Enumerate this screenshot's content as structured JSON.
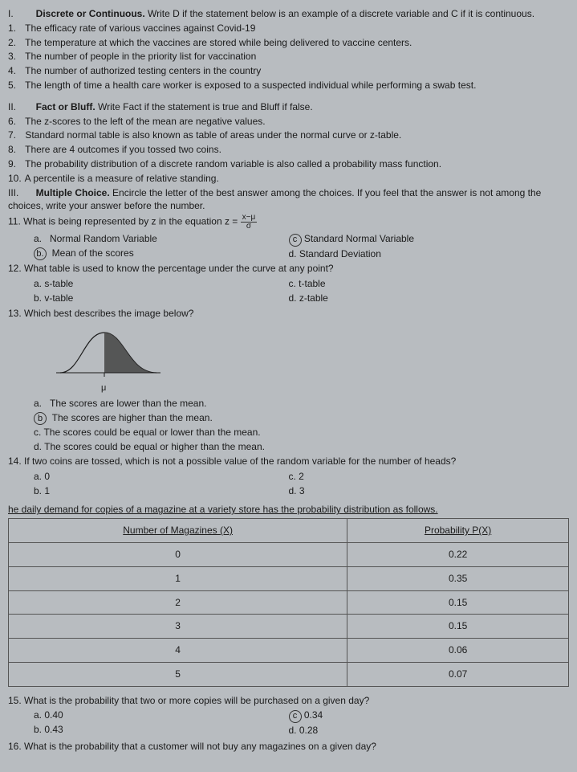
{
  "sec1": {
    "num": "I.",
    "title": "Discrete or Continuous.",
    "instr": "Write D if the statement below is an example of a discrete variable and C if it is continuous.",
    "items": [
      {
        "n": "1.",
        "t": "The efficacy rate of various vaccines against Covid-19"
      },
      {
        "n": "2.",
        "t": "The temperature at which the vaccines are stored while being delivered to vaccine centers."
      },
      {
        "n": "3.",
        "t": "The number of people in the priority list for vaccination"
      },
      {
        "n": "4.",
        "t": "The number of authorized testing centers in the country"
      },
      {
        "n": "5.",
        "t": "The length of time a health care worker is exposed to a suspected individual while performing a swab test."
      }
    ]
  },
  "sec2": {
    "num": "II.",
    "title": "Fact or Bluff.",
    "instr": "Write Fact if the statement is true and Bluff if false.",
    "items": [
      {
        "n": "6.",
        "t": "The z-scores to the left of the mean are negative values."
      },
      {
        "n": "7.",
        "t": "Standard normal table is also known as table of areas under the normal curve or z-table."
      },
      {
        "n": "8.",
        "t": "There are 4 outcomes if you tossed two coins."
      },
      {
        "n": "9.",
        "t": "The probability distribution of a discrete random variable is also called a probability mass function."
      },
      {
        "n": "10.",
        "t": "A percentile is a measure of relative standing."
      }
    ]
  },
  "sec3": {
    "num": "III.",
    "title": "Multiple Choice.",
    "instr": "Encircle the letter of the best answer among the choices. If you feel that the answer is not among the choices, write your answer before the number."
  },
  "q11": {
    "stem_a": "11. What is being represented by z in the equation z = ",
    "frac_top": "x−μ",
    "frac_bot": "σ",
    "a": "Normal Random Variable",
    "b": "Mean of the scores",
    "c": "Standard Normal Variable",
    "d": "d. Standard Deviation"
  },
  "q12": {
    "stem": "12. What table is used to know the percentage under the curve at any point?",
    "a": "a.   s-table",
    "b": "b.   v-table",
    "c": "c. t-table",
    "d": "d. z-table"
  },
  "q13": {
    "stem": "13. Which best describes the image below?",
    "mu": "μ",
    "a": "The scores are lower than the mean.",
    "b": "The scores are higher than the mean.",
    "c": "c.    The scores could be equal or lower than the mean.",
    "d": "d.    The scores could be equal or higher than the mean."
  },
  "q14": {
    "stem": "14. If two coins are tossed, which is not a possible value of the random variable for the number of heads?",
    "a": "a.    0",
    "b": "b.    1",
    "c": "c. 2",
    "d": "d. 3"
  },
  "tbl": {
    "lead": "he daily demand for copies of a magazine at a variety store has the probability distribution as follows.",
    "h1": "Number of Magazines (X)",
    "h2": "Probability P(X)",
    "rows": [
      {
        "x": "0",
        "p": "0.22"
      },
      {
        "x": "1",
        "p": "0.35"
      },
      {
        "x": "2",
        "p": "0.15"
      },
      {
        "x": "3",
        "p": "0.15"
      },
      {
        "x": "4",
        "p": "0.06"
      },
      {
        "x": "5",
        "p": "0.07"
      }
    ]
  },
  "q15": {
    "stem": "15. What is the probability that two or more copies will be purchased on a given day?",
    "a": "a.   0.40",
    "b": "b.   0.43",
    "c": "0.34",
    "d": "d. 0.28"
  },
  "q16": {
    "stem": "16. What is the probability that a customer will not buy any magazines on a given day?"
  },
  "style": {
    "curve_fill": "#4a4a4a",
    "curve_stroke": "#1a1a1a"
  }
}
